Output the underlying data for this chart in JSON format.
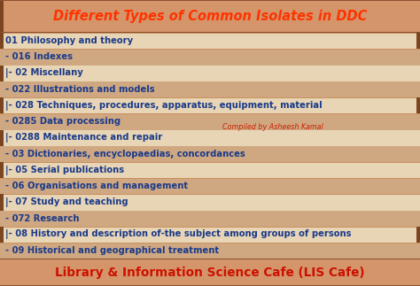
{
  "title": "Different Types of Common Isolates in DDC",
  "title_color": "#FF3300",
  "title_bg": "#D4956A",
  "title_border_left_color": "#8B5E3C",
  "compiled_by": "Compiled by Asheesh Kamal",
  "compiled_color": "#CC2200",
  "footer": "Library & Information Science Cafe (LIS Cafe)",
  "footer_color": "#CC1100",
  "footer_bg": "#D4956A",
  "rows": [
    {
      "text": "01 Philosophy and theory",
      "bg": "#E8D5B5",
      "left_bar": true,
      "right_bar": true
    },
    {
      "text": "- 016 Indexes",
      "bg": "#CFA882",
      "left_bar": false,
      "right_bar": false
    },
    {
      "text": "|- 02 Miscellany",
      "bg": "#E8D5B5",
      "left_bar": true,
      "right_bar": false
    },
    {
      "text": "- 022 Illustrations and models",
      "bg": "#CFA882",
      "left_bar": false,
      "right_bar": false
    },
    {
      "text": "|- 028 Techniques, procedures, apparatus, equipment, material",
      "bg": "#E8D5B5",
      "left_bar": true,
      "right_bar": true
    },
    {
      "text": "- 0285 Data processing",
      "bg": "#CFA882",
      "left_bar": false,
      "right_bar": false
    },
    {
      "text": "|- 0288 Maintenance and repair",
      "bg": "#E8D5B5",
      "left_bar": true,
      "right_bar": false
    },
    {
      "text": "- 03 Dictionaries, encyclopaedias, concordances",
      "bg": "#CFA882",
      "left_bar": false,
      "right_bar": false
    },
    {
      "text": "|- 05 Serial publications",
      "bg": "#E8D5B5",
      "left_bar": true,
      "right_bar": false
    },
    {
      "text": "- 06 Organisations and management",
      "bg": "#CFA882",
      "left_bar": false,
      "right_bar": false
    },
    {
      "text": "|- 07 Study and teaching",
      "bg": "#E8D5B5",
      "left_bar": true,
      "right_bar": false
    },
    {
      "text": "- 072 Research",
      "bg": "#CFA882",
      "left_bar": false,
      "right_bar": false
    },
    {
      "text": "|- 08 History and description of-the subject among groups of persons",
      "bg": "#E8D5B5",
      "left_bar": true,
      "right_bar": true
    },
    {
      "text": "- 09 Historical and geographical treatment",
      "bg": "#CFA882",
      "left_bar": false,
      "right_bar": false
    }
  ],
  "row_text_color": "#1A3A8A",
  "left_bar_color": "#7A4520",
  "right_bar_color": "#7A4520",
  "bg_color": "#C8915E",
  "border_color": "#8B5030",
  "figwidth": 4.74,
  "figheight": 3.23,
  "dpi": 100
}
